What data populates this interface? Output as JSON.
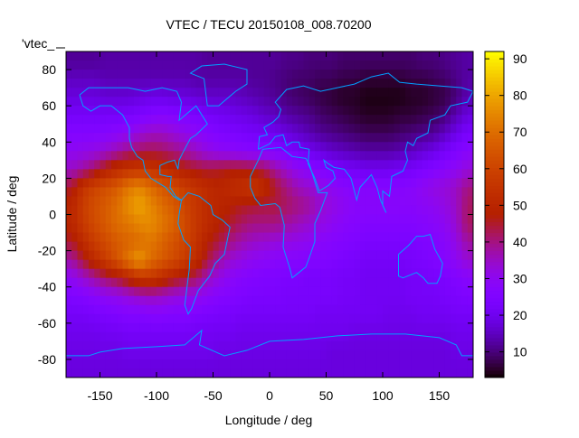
{
  "chart_data": {
    "type": "heatmap",
    "title": "VTEC / TECU 20150108_008.70200",
    "key_label": "'vtec_",
    "xlabel": "Longitude / deg",
    "ylabel": "Latitude / deg",
    "xlim": [
      -180,
      180
    ],
    "ylim": [
      -90,
      90
    ],
    "cbrange": [
      3,
      92
    ],
    "xticks": [
      -150,
      -100,
      -50,
      0,
      50,
      100,
      150
    ],
    "yticks": [
      -80,
      -60,
      -40,
      -20,
      0,
      20,
      40,
      60,
      80
    ],
    "cbticks": [
      10,
      20,
      30,
      40,
      50,
      60,
      70,
      80,
      90
    ],
    "colormap": "gnuplot rgbformulae 7,5,15",
    "coastline_color": "#00a0ff",
    "grid_lon_centers_start": -175,
    "grid_lat_centers_start": 85,
    "grid_step_deg": 10,
    "values": [
      [
        12,
        12,
        12,
        13,
        13,
        13,
        13,
        13,
        13,
        13,
        13,
        13,
        12,
        12,
        12,
        12,
        12,
        12,
        12,
        11,
        11,
        10,
        10,
        10,
        9,
        9,
        9,
        9,
        9,
        9,
        9,
        10,
        10,
        11,
        12,
        13
      ],
      [
        15,
        15,
        15,
        14,
        14,
        14,
        14,
        14,
        14,
        14,
        14,
        13,
        13,
        13,
        13,
        13,
        12,
        12,
        11,
        10,
        9,
        9,
        8,
        8,
        7,
        7,
        6,
        6,
        6,
        6,
        7,
        7,
        8,
        9,
        11,
        13
      ],
      [
        18,
        18,
        18,
        17,
        17,
        17,
        18,
        19,
        19,
        18,
        18,
        17,
        16,
        16,
        16,
        15,
        14,
        13,
        12,
        10,
        9,
        8,
        7,
        6,
        5,
        5,
        4,
        4,
        4,
        4,
        5,
        5,
        6,
        7,
        10,
        14
      ],
      [
        22,
        22,
        22,
        22,
        22,
        23,
        24,
        26,
        27,
        26,
        25,
        24,
        22,
        21,
        20,
        19,
        18,
        16,
        15,
        13,
        12,
        11,
        9,
        8,
        7,
        6,
        5,
        5,
        5,
        6,
        6,
        7,
        8,
        10,
        14,
        18
      ],
      [
        26,
        26,
        26,
        27,
        28,
        30,
        33,
        35,
        35,
        33,
        31,
        29,
        27,
        25,
        24,
        23,
        22,
        21,
        20,
        18,
        16,
        14,
        12,
        11,
        10,
        9,
        8,
        8,
        8,
        9,
        10,
        11,
        12,
        15,
        19,
        23
      ],
      [
        30,
        31,
        32,
        34,
        37,
        40,
        42,
        43,
        42,
        40,
        38,
        35,
        32,
        30,
        29,
        28,
        27,
        27,
        26,
        24,
        22,
        20,
        18,
        16,
        15,
        14,
        13,
        13,
        13,
        14,
        15,
        17,
        19,
        22,
        25,
        28
      ],
      [
        35,
        38,
        42,
        48,
        52,
        55,
        56,
        55,
        53,
        50,
        47,
        45,
        44,
        45,
        46,
        46,
        45,
        43,
        38,
        34,
        30,
        28,
        26,
        24,
        22,
        21,
        20,
        20,
        20,
        21,
        22,
        24,
        26,
        28,
        30,
        33
      ],
      [
        45,
        55,
        60,
        63,
        66,
        72,
        75,
        70,
        65,
        62,
        58,
        55,
        52,
        50,
        52,
        54,
        56,
        52,
        45,
        40,
        36,
        34,
        32,
        30,
        28,
        27,
        27,
        27,
        27,
        27,
        28,
        30,
        32,
        33,
        35,
        40
      ],
      [
        50,
        58,
        63,
        66,
        70,
        76,
        80,
        75,
        70,
        66,
        60,
        56,
        52,
        50,
        48,
        46,
        45,
        44,
        44,
        42,
        40,
        38,
        34,
        32,
        30,
        28,
        28,
        28,
        28,
        28,
        28,
        29,
        30,
        32,
        35,
        42
      ],
      [
        50,
        57,
        62,
        66,
        70,
        72,
        75,
        76,
        72,
        68,
        62,
        56,
        52,
        48,
        45,
        42,
        40,
        40,
        40,
        38,
        36,
        34,
        32,
        30,
        28,
        27,
        26,
        26,
        26,
        26,
        26,
        27,
        28,
        30,
        34,
        42
      ],
      [
        45,
        52,
        58,
        62,
        66,
        68,
        70,
        72,
        68,
        64,
        60,
        55,
        48,
        44,
        40,
        37,
        35,
        34,
        33,
        32,
        31,
        30,
        28,
        27,
        26,
        25,
        24,
        24,
        24,
        24,
        24,
        25,
        26,
        28,
        32,
        38
      ],
      [
        38,
        45,
        52,
        58,
        64,
        72,
        78,
        70,
        66,
        62,
        58,
        52,
        44,
        38,
        34,
        32,
        30,
        29,
        28,
        27,
        27,
        26,
        26,
        25,
        24,
        23,
        22,
        22,
        22,
        22,
        23,
        24,
        25,
        27,
        30,
        34
      ],
      [
        30,
        34,
        38,
        42,
        45,
        50,
        55,
        56,
        52,
        48,
        45,
        42,
        36,
        32,
        29,
        27,
        26,
        25,
        25,
        24,
        24,
        23,
        23,
        23,
        22,
        22,
        21,
        21,
        21,
        21,
        22,
        22,
        23,
        24,
        26,
        28
      ],
      [
        25,
        26,
        28,
        30,
        31,
        33,
        35,
        36,
        35,
        33,
        32,
        31,
        29,
        27,
        26,
        25,
        24,
        24,
        24,
        23,
        23,
        23,
        23,
        23,
        22,
        22,
        21,
        21,
        21,
        21,
        22,
        22,
        22,
        23,
        24,
        25
      ],
      [
        22,
        22,
        23,
        24,
        25,
        26,
        26,
        27,
        27,
        26,
        26,
        25,
        24,
        23,
        23,
        22,
        22,
        22,
        22,
        22,
        22,
        22,
        21,
        21,
        21,
        21,
        21,
        21,
        20,
        20,
        20,
        21,
        21,
        21,
        22,
        22
      ],
      [
        20,
        20,
        20,
        21,
        21,
        22,
        22,
        22,
        22,
        22,
        22,
        21,
        21,
        21,
        21,
        20,
        20,
        20,
        20,
        20,
        20,
        20,
        20,
        20,
        20,
        19,
        19,
        19,
        19,
        19,
        19,
        19,
        19,
        19,
        20,
        20
      ],
      [
        19,
        19,
        19,
        19,
        19,
        20,
        20,
        20,
        20,
        20,
        20,
        20,
        20,
        19,
        19,
        19,
        19,
        19,
        19,
        19,
        19,
        19,
        19,
        18,
        18,
        18,
        18,
        18,
        18,
        18,
        18,
        18,
        18,
        18,
        19,
        19
      ],
      [
        18,
        18,
        18,
        18,
        18,
        18,
        18,
        18,
        18,
        18,
        18,
        18,
        18,
        18,
        18,
        18,
        18,
        18,
        18,
        18,
        18,
        18,
        18,
        18,
        18,
        18,
        18,
        18,
        18,
        18,
        18,
        18,
        18,
        18,
        18,
        18
      ]
    ],
    "coastlines": [
      [
        [
          -168,
          66
        ],
        [
          -160,
          70
        ],
        [
          -140,
          70
        ],
        [
          -125,
          70
        ],
        [
          -110,
          68
        ],
        [
          -95,
          70
        ],
        [
          -82,
          68
        ],
        [
          -78,
          62
        ],
        [
          -80,
          52
        ],
        [
          -65,
          60
        ],
        [
          -60,
          55
        ],
        [
          -55,
          50
        ],
        [
          -65,
          44
        ],
        [
          -70,
          42
        ],
        [
          -76,
          35
        ],
        [
          -80,
          30
        ],
        [
          -81,
          25
        ],
        [
          -84,
          30
        ],
        [
          -90,
          29
        ],
        [
          -97,
          27
        ],
        [
          -97,
          22
        ],
        [
          -90,
          21
        ],
        [
          -87,
          21
        ],
        [
          -88,
          15
        ],
        [
          -83,
          10
        ],
        [
          -78,
          8
        ],
        [
          -80,
          8
        ],
        [
          -85,
          10
        ],
        [
          -92,
          15
        ],
        [
          -105,
          20
        ],
        [
          -110,
          24
        ],
        [
          -112,
          30
        ],
        [
          -117,
          32
        ],
        [
          -122,
          37
        ],
        [
          -124,
          42
        ],
        [
          -124,
          48
        ],
        [
          -130,
          55
        ],
        [
          -140,
          60
        ],
        [
          -150,
          60
        ],
        [
          -158,
          57
        ],
        [
          -165,
          60
        ],
        [
          -168,
          66
        ]
      ],
      [
        [
          -78,
          8
        ],
        [
          -72,
          12
        ],
        [
          -62,
          10
        ],
        [
          -52,
          5
        ],
        [
          -50,
          0
        ],
        [
          -42,
          -3
        ],
        [
          -35,
          -7
        ],
        [
          -37,
          -13
        ],
        [
          -40,
          -22
        ],
        [
          -48,
          -27
        ],
        [
          -53,
          -34
        ],
        [
          -58,
          -38
        ],
        [
          -63,
          -42
        ],
        [
          -66,
          -47
        ],
        [
          -69,
          -52
        ],
        [
          -72,
          -55
        ],
        [
          -75,
          -50
        ],
        [
          -73,
          -40
        ],
        [
          -71,
          -30
        ],
        [
          -70,
          -18
        ],
        [
          -76,
          -14
        ],
        [
          -81,
          -5
        ],
        [
          -80,
          0
        ],
        [
          -78,
          8
        ]
      ],
      [
        [
          -55,
          60
        ],
        [
          -45,
          60
        ],
        [
          -30,
          68
        ],
        [
          -20,
          72
        ],
        [
          -20,
          80
        ],
        [
          -40,
          83
        ],
        [
          -60,
          82
        ],
        [
          -70,
          78
        ],
        [
          -58,
          75
        ],
        [
          -55,
          60
        ]
      ],
      [
        [
          -17,
          15
        ],
        [
          -17,
          21
        ],
        [
          -10,
          30
        ],
        [
          -6,
          36
        ],
        [
          10,
          37
        ],
        [
          20,
          32
        ],
        [
          32,
          31
        ],
        [
          35,
          28
        ],
        [
          43,
          12
        ],
        [
          51,
          12
        ],
        [
          45,
          2
        ],
        [
          40,
          -5
        ],
        [
          40,
          -15
        ],
        [
          35,
          -24
        ],
        [
          32,
          -29
        ],
        [
          20,
          -35
        ],
        [
          18,
          -30
        ],
        [
          12,
          -18
        ],
        [
          13,
          -6
        ],
        [
          9,
          4
        ],
        [
          5,
          6
        ],
        [
          -8,
          5
        ],
        [
          -13,
          9
        ],
        [
          -17,
          15
        ]
      ],
      [
        [
          -10,
          36
        ],
        [
          -9,
          43
        ],
        [
          -2,
          44
        ],
        [
          -5,
          48
        ],
        [
          3,
          51
        ],
        [
          8,
          54
        ],
        [
          10,
          58
        ],
        [
          5,
          62
        ],
        [
          15,
          69
        ],
        [
          30,
          71
        ],
        [
          45,
          68
        ],
        [
          60,
          70
        ],
        [
          75,
          72
        ],
        [
          90,
          76
        ],
        [
          105,
          78
        ],
        [
          115,
          73
        ],
        [
          130,
          72
        ],
        [
          150,
          71
        ],
        [
          170,
          70
        ],
        [
          180,
          68
        ],
        [
          175,
          62
        ],
        [
          160,
          60
        ],
        [
          155,
          55
        ],
        [
          142,
          52
        ],
        [
          140,
          45
        ],
        [
          130,
          42
        ],
        [
          127,
          38
        ],
        [
          122,
          40
        ],
        [
          120,
          35
        ],
        [
          122,
          30
        ],
        [
          118,
          24
        ],
        [
          108,
          21
        ],
        [
          106,
          10
        ],
        [
          100,
          13
        ],
        [
          100,
          5
        ],
        [
          103,
          1
        ],
        [
          98,
          8
        ],
        [
          95,
          15
        ],
        [
          90,
          22
        ],
        [
          80,
          15
        ],
        [
          77,
          8
        ],
        [
          72,
          20
        ],
        [
          66,
          25
        ],
        [
          57,
          26
        ],
        [
          52,
          28
        ],
        [
          48,
          30
        ],
        [
          50,
          26
        ],
        [
          56,
          24
        ],
        [
          58,
          20
        ],
        [
          52,
          16
        ],
        [
          44,
          13
        ],
        [
          40,
          20
        ],
        [
          34,
          28
        ],
        [
          35,
          36
        ],
        [
          27,
          37
        ],
        [
          26,
          40
        ],
        [
          20,
          40
        ],
        [
          15,
          38
        ],
        [
          12,
          44
        ],
        [
          5,
          43
        ],
        [
          0,
          39
        ],
        [
          -10,
          36
        ]
      ],
      [
        [
          114,
          -22
        ],
        [
          114,
          -34
        ],
        [
          118,
          -35
        ],
        [
          130,
          -32
        ],
        [
          136,
          -35
        ],
        [
          140,
          -38
        ],
        [
          148,
          -38
        ],
        [
          151,
          -34
        ],
        [
          153,
          -27
        ],
        [
          146,
          -19
        ],
        [
          142,
          -11
        ],
        [
          136,
          -12
        ],
        [
          130,
          -12
        ],
        [
          123,
          -17
        ],
        [
          114,
          -22
        ]
      ],
      [
        [
          -180,
          -84
        ],
        [
          -180,
          -78
        ],
        [
          -160,
          -78
        ],
        [
          -150,
          -76
        ],
        [
          -130,
          -74
        ],
        [
          -100,
          -73
        ],
        [
          -75,
          -72
        ],
        [
          -60,
          -64
        ],
        [
          -62,
          -72
        ],
        [
          -40,
          -78
        ],
        [
          -20,
          -75
        ],
        [
          0,
          -70
        ],
        [
          30,
          -69
        ],
        [
          60,
          -67
        ],
        [
          90,
          -66
        ],
        [
          120,
          -66
        ],
        [
          150,
          -68
        ],
        [
          165,
          -72
        ],
        [
          170,
          -78
        ],
        [
          180,
          -78
        ],
        [
          180,
          -84
        ]
      ]
    ]
  }
}
